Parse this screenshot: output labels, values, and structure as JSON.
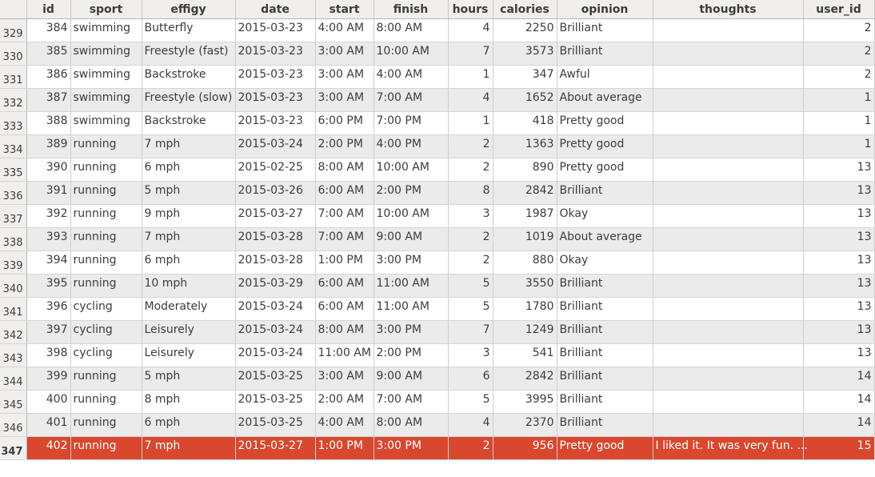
{
  "columns": [
    "id",
    "sport",
    "effigy",
    "date",
    "start",
    "finish",
    "hours",
    "calories",
    "opinion",
    "thoughts",
    "user_id"
  ],
  "rows": [
    {
      "rownum": "329",
      "id": "384",
      "sport": "swimming",
      "effigy": "Butterfly",
      "date": "2015-03-23",
      "start": "4:00 AM",
      "finish": "8:00 AM",
      "hours": "4",
      "calories": "2250",
      "opinion": "Brilliant",
      "thoughts": "",
      "user_id": "2"
    },
    {
      "rownum": "330",
      "id": "385",
      "sport": "swimming",
      "effigy": "Freestyle (fast)",
      "date": "2015-03-23",
      "start": "3:00 AM",
      "finish": "10:00 AM",
      "hours": "7",
      "calories": "3573",
      "opinion": "Brilliant",
      "thoughts": "",
      "user_id": "2"
    },
    {
      "rownum": "331",
      "id": "386",
      "sport": "swimming",
      "effigy": "Backstroke",
      "date": "2015-03-23",
      "start": "3:00 AM",
      "finish": "4:00 AM",
      "hours": "1",
      "calories": "347",
      "opinion": "Awful",
      "thoughts": "",
      "user_id": "2"
    },
    {
      "rownum": "332",
      "id": "387",
      "sport": "swimming",
      "effigy": "Freestyle (slow)",
      "date": "2015-03-23",
      "start": "3:00 AM",
      "finish": "7:00 AM",
      "hours": "4",
      "calories": "1652",
      "opinion": "About average",
      "thoughts": "",
      "user_id": "1"
    },
    {
      "rownum": "333",
      "id": "388",
      "sport": "swimming",
      "effigy": "Backstroke",
      "date": "2015-03-23",
      "start": "6:00 PM",
      "finish": "7:00 PM",
      "hours": "1",
      "calories": "418",
      "opinion": "Pretty good",
      "thoughts": "",
      "user_id": "1"
    },
    {
      "rownum": "334",
      "id": "389",
      "sport": "running",
      "effigy": "7 mph",
      "date": "2015-03-24",
      "start": "2:00 PM",
      "finish": "4:00 PM",
      "hours": "2",
      "calories": "1363",
      "opinion": "Pretty good",
      "thoughts": "",
      "user_id": "1"
    },
    {
      "rownum": "335",
      "id": "390",
      "sport": "running",
      "effigy": "6 mph",
      "date": "2015-02-25",
      "start": "8:00 AM",
      "finish": "10:00 AM",
      "hours": "2",
      "calories": "890",
      "opinion": "Pretty good",
      "thoughts": "",
      "user_id": "13"
    },
    {
      "rownum": "336",
      "id": "391",
      "sport": "running",
      "effigy": "5 mph",
      "date": "2015-03-26",
      "start": "6:00 AM",
      "finish": "2:00 PM",
      "hours": "8",
      "calories": "2842",
      "opinion": "Brilliant",
      "thoughts": "",
      "user_id": "13"
    },
    {
      "rownum": "337",
      "id": "392",
      "sport": "running",
      "effigy": "9 mph",
      "date": "2015-03-27",
      "start": "7:00 AM",
      "finish": "10:00 AM",
      "hours": "3",
      "calories": "1987",
      "opinion": "Okay",
      "thoughts": "",
      "user_id": "13"
    },
    {
      "rownum": "338",
      "id": "393",
      "sport": "running",
      "effigy": "7 mph",
      "date": "2015-03-28",
      "start": "7:00 AM",
      "finish": "9:00 AM",
      "hours": "2",
      "calories": "1019",
      "opinion": "About average",
      "thoughts": "",
      "user_id": "13"
    },
    {
      "rownum": "339",
      "id": "394",
      "sport": "running",
      "effigy": "6 mph",
      "date": "2015-03-28",
      "start": "1:00 PM",
      "finish": "3:00 PM",
      "hours": "2",
      "calories": "880",
      "opinion": "Okay",
      "thoughts": "",
      "user_id": "13"
    },
    {
      "rownum": "340",
      "id": "395",
      "sport": "running",
      "effigy": "10 mph",
      "date": "2015-03-29",
      "start": "6:00 AM",
      "finish": "11:00 AM",
      "hours": "5",
      "calories": "3550",
      "opinion": "Brilliant",
      "thoughts": "",
      "user_id": "13"
    },
    {
      "rownum": "341",
      "id": "396",
      "sport": "cycling",
      "effigy": "Moderately",
      "date": "2015-03-24",
      "start": "6:00 AM",
      "finish": "11:00 AM",
      "hours": "5",
      "calories": "1780",
      "opinion": "Brilliant",
      "thoughts": "",
      "user_id": "13"
    },
    {
      "rownum": "342",
      "id": "397",
      "sport": "cycling",
      "effigy": "Leisurely",
      "date": "2015-03-24",
      "start": "8:00 AM",
      "finish": "3:00 PM",
      "hours": "7",
      "calories": "1249",
      "opinion": "Brilliant",
      "thoughts": "",
      "user_id": "13"
    },
    {
      "rownum": "343",
      "id": "398",
      "sport": "cycling",
      "effigy": "Leisurely",
      "date": "2015-03-24",
      "start": "11:00 AM",
      "finish": "2:00 PM",
      "hours": "3",
      "calories": "541",
      "opinion": "Brilliant",
      "thoughts": "",
      "user_id": "13"
    },
    {
      "rownum": "344",
      "id": "399",
      "sport": "running",
      "effigy": "5 mph",
      "date": "2015-03-25",
      "start": "3:00 AM",
      "finish": "9:00 AM",
      "hours": "6",
      "calories": "2842",
      "opinion": "Brilliant",
      "thoughts": "",
      "user_id": "14"
    },
    {
      "rownum": "345",
      "id": "400",
      "sport": "running",
      "effigy": "8 mph",
      "date": "2015-03-25",
      "start": "2:00 AM",
      "finish": "7:00 AM",
      "hours": "5",
      "calories": "3995",
      "opinion": "Brilliant",
      "thoughts": "",
      "user_id": "14"
    },
    {
      "rownum": "346",
      "id": "401",
      "sport": "running",
      "effigy": "6 mph",
      "date": "2015-03-25",
      "start": "4:00 AM",
      "finish": "8:00 AM",
      "hours": "4",
      "calories": "2370",
      "opinion": "Brilliant",
      "thoughts": "",
      "user_id": "14"
    },
    {
      "rownum": "347",
      "id": "402",
      "sport": "running",
      "effigy": "7 mph",
      "date": "2015-03-27",
      "start": "1:00 PM",
      "finish": "3:00 PM",
      "hours": "2",
      "calories": "956",
      "opinion": "Pretty good",
      "thoughts": "I liked it. It was very fun. ...",
      "user_id": "15"
    }
  ],
  "selected_row_index": 18,
  "colors": {
    "selection": "#d9472f",
    "header_bg": "#f0efed",
    "row_alt": "#ebebeb"
  }
}
